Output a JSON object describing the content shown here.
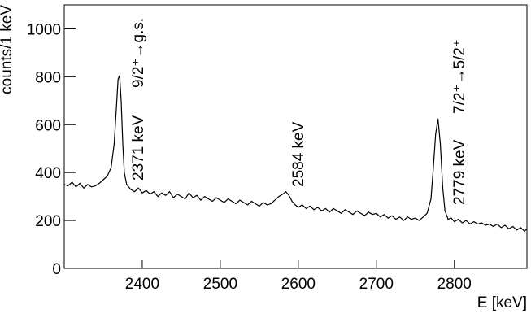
{
  "chart_data": {
    "type": "line",
    "x_label": "E [keV]",
    "y_label": "counts/1 keV",
    "annotations": [
      "2371 keV",
      "9/2⁺→g.s.",
      "2584 keV",
      "2779 keV",
      "7/2⁺→5/2⁺"
    ],
    "xlim": [
      2300,
      2893
    ],
    "ylim": [
      0,
      1100
    ],
    "xticks": [
      2400,
      2500,
      2600,
      2700,
      2800
    ],
    "yticks": [
      0,
      200,
      400,
      600,
      800,
      1000
    ],
    "series": [
      {
        "color": "#000000",
        "x": [
          2300,
          2305,
          2310,
          2315,
          2320,
          2325,
          2330,
          2335,
          2340,
          2345,
          2350,
          2355,
          2360,
          2364,
          2367,
          2369,
          2371,
          2373,
          2375,
          2377,
          2380,
          2385,
          2390,
          2395,
          2400,
          2405,
          2410,
          2415,
          2420,
          2425,
          2430,
          2435,
          2440,
          2445,
          2450,
          2455,
          2460,
          2465,
          2470,
          2475,
          2480,
          2485,
          2490,
          2495,
          2500,
          2505,
          2510,
          2515,
          2520,
          2525,
          2530,
          2535,
          2540,
          2545,
          2550,
          2555,
          2560,
          2565,
          2570,
          2575,
          2580,
          2584,
          2588,
          2592,
          2596,
          2600,
          2605,
          2610,
          2615,
          2620,
          2625,
          2630,
          2635,
          2640,
          2645,
          2650,
          2655,
          2660,
          2665,
          2670,
          2675,
          2680,
          2685,
          2690,
          2695,
          2700,
          2705,
          2710,
          2715,
          2720,
          2725,
          2730,
          2735,
          2740,
          2745,
          2750,
          2755,
          2760,
          2765,
          2770,
          2773,
          2776,
          2779,
          2782,
          2785,
          2788,
          2792,
          2796,
          2800,
          2805,
          2810,
          2815,
          2820,
          2825,
          2830,
          2835,
          2840,
          2845,
          2850,
          2855,
          2860,
          2865,
          2870,
          2875,
          2880,
          2885,
          2890,
          2893
        ],
        "values": [
          350,
          345,
          360,
          340,
          355,
          335,
          350,
          340,
          345,
          355,
          370,
          385,
          420,
          520,
          680,
          790,
          805,
          700,
          520,
          400,
          350,
          330,
          320,
          335,
          315,
          325,
          310,
          320,
          300,
          315,
          305,
          320,
          295,
          310,
          300,
          290,
          315,
          295,
          305,
          285,
          300,
          290,
          280,
          295,
          285,
          275,
          290,
          280,
          270,
          285,
          275,
          265,
          280,
          270,
          260,
          275,
          265,
          270,
          285,
          300,
          310,
          320,
          305,
          280,
          265,
          255,
          265,
          250,
          260,
          245,
          255,
          240,
          250,
          235,
          250,
          240,
          230,
          245,
          235,
          225,
          240,
          230,
          220,
          235,
          225,
          230,
          215,
          225,
          210,
          220,
          205,
          215,
          200,
          215,
          205,
          210,
          200,
          215,
          230,
          290,
          420,
          560,
          625,
          520,
          340,
          240,
          205,
          210,
          195,
          205,
          190,
          200,
          185,
          195,
          185,
          190,
          180,
          185,
          175,
          185,
          170,
          180,
          165,
          175,
          160,
          170,
          155,
          165
        ]
      }
    ]
  }
}
